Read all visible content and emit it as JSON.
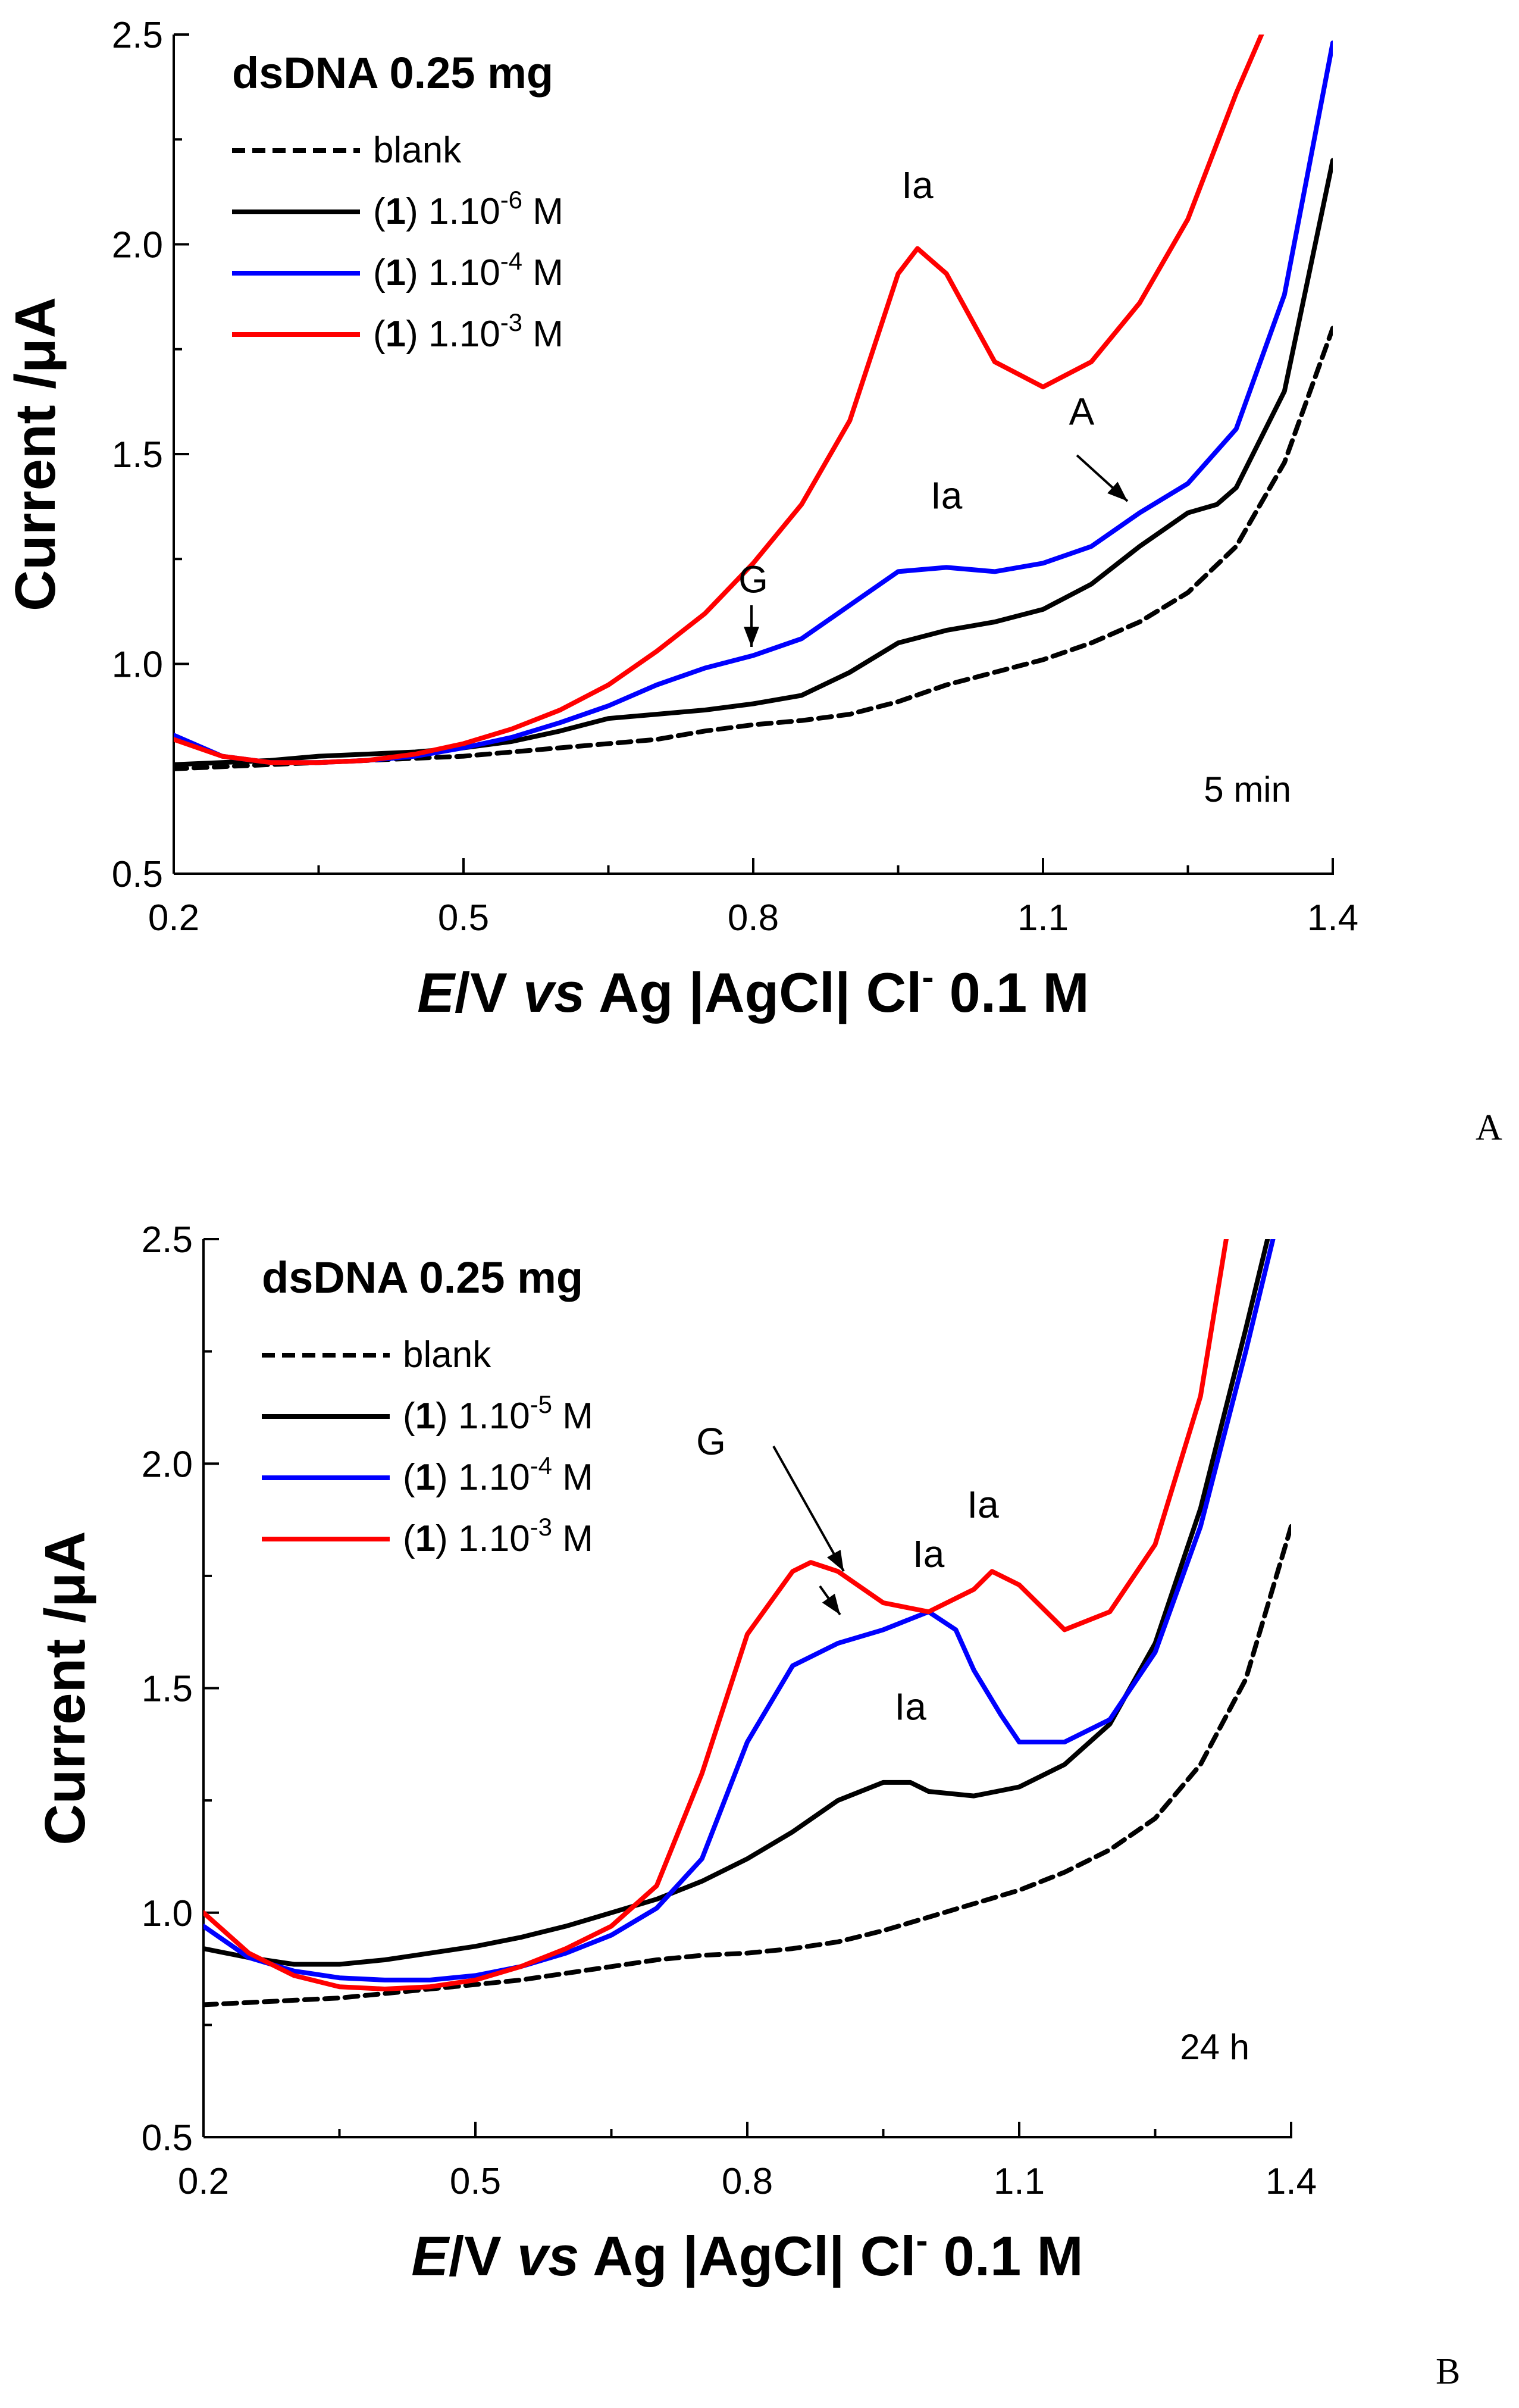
{
  "chart_data": [
    {
      "type": "line",
      "panel_letter": "A",
      "header": "dsDNA   0.25 mg",
      "xlabel": {
        "italic_var": "E",
        "rest_a": "/V ",
        "italic_vs": "vs",
        "rest_b": " Ag |AgCl| Cl",
        "sup": "-",
        "rest_c": " 0.1 M"
      },
      "ylabel": "Current /μA",
      "xlim": [
        0.2,
        1.4
      ],
      "ylim": [
        0.5,
        2.5
      ],
      "xticks": [
        "0.2",
        "0.5",
        "0.8",
        "1.1",
        "1.4"
      ],
      "yticks": [
        "0.5",
        "1.0",
        "1.5",
        "2.0",
        "2.5"
      ],
      "condition_label": "5 min",
      "grid": false,
      "legend_position": "top-left",
      "series": [
        {
          "name": "blank",
          "color": "#000000",
          "dash": "dashed",
          "x": [
            0.2,
            0.25,
            0.3,
            0.35,
            0.4,
            0.45,
            0.5,
            0.55,
            0.6,
            0.65,
            0.7,
            0.75,
            0.8,
            0.85,
            0.9,
            0.95,
            1.0,
            1.05,
            1.1,
            1.15,
            1.2,
            1.25,
            1.3,
            1.35,
            1.4
          ],
          "y": [
            0.75,
            0.755,
            0.76,
            0.765,
            0.77,
            0.775,
            0.78,
            0.79,
            0.8,
            0.81,
            0.82,
            0.84,
            0.855,
            0.865,
            0.88,
            0.91,
            0.95,
            0.98,
            1.01,
            1.05,
            1.1,
            1.17,
            1.28,
            1.48,
            1.8
          ]
        },
        {
          "label_prefix": "(",
          "label_bold": "1",
          "label_mid": ") 1.10",
          "label_sup": "-6",
          "label_suffix": " M",
          "color": "#000000",
          "dash": "solid",
          "x": [
            0.2,
            0.25,
            0.3,
            0.35,
            0.4,
            0.45,
            0.5,
            0.55,
            0.6,
            0.65,
            0.7,
            0.75,
            0.8,
            0.85,
            0.9,
            0.95,
            1.0,
            1.05,
            1.1,
            1.15,
            1.2,
            1.25,
            1.28,
            1.3,
            1.35,
            1.4
          ],
          "y": [
            0.76,
            0.765,
            0.77,
            0.78,
            0.785,
            0.79,
            0.8,
            0.815,
            0.84,
            0.87,
            0.88,
            0.89,
            0.905,
            0.925,
            0.98,
            1.05,
            1.08,
            1.1,
            1.13,
            1.19,
            1.28,
            1.36,
            1.38,
            1.42,
            1.65,
            2.2
          ]
        },
        {
          "label_prefix": "(",
          "label_bold": "1",
          "label_mid": ") 1.10",
          "label_sup": "-4",
          "label_suffix": " M",
          "color": "#0000ff",
          "dash": "solid",
          "x": [
            0.2,
            0.25,
            0.3,
            0.35,
            0.4,
            0.45,
            0.5,
            0.55,
            0.6,
            0.65,
            0.7,
            0.75,
            0.8,
            0.85,
            0.9,
            0.95,
            1.0,
            1.05,
            1.1,
            1.15,
            1.2,
            1.25,
            1.3,
            1.35,
            1.4
          ],
          "y": [
            0.83,
            0.78,
            0.765,
            0.765,
            0.77,
            0.78,
            0.8,
            0.825,
            0.86,
            0.9,
            0.95,
            0.99,
            1.02,
            1.06,
            1.14,
            1.22,
            1.23,
            1.22,
            1.24,
            1.28,
            1.36,
            1.43,
            1.56,
            1.88,
            2.48
          ]
        },
        {
          "label_prefix": "(",
          "label_bold": "1",
          "label_mid": ") 1.10",
          "label_sup": "-3",
          "label_suffix": " M",
          "color": "#ff0000",
          "dash": "solid",
          "x": [
            0.2,
            0.25,
            0.3,
            0.35,
            0.4,
            0.45,
            0.5,
            0.55,
            0.6,
            0.65,
            0.7,
            0.75,
            0.8,
            0.85,
            0.9,
            0.95,
            0.97,
            1.0,
            1.05,
            1.1,
            1.15,
            1.2,
            1.25,
            1.3,
            1.33
          ],
          "y": [
            0.82,
            0.78,
            0.765,
            0.765,
            0.77,
            0.785,
            0.81,
            0.845,
            0.89,
            0.95,
            1.03,
            1.12,
            1.24,
            1.38,
            1.58,
            1.93,
            1.99,
            1.93,
            1.72,
            1.66,
            1.72,
            1.86,
            2.06,
            2.36,
            2.52
          ]
        }
      ],
      "annotations": [
        {
          "text": "Ia",
          "x": 0.97,
          "y": 2.11
        },
        {
          "text": "Ia",
          "x": 1.0,
          "y": 1.37
        },
        {
          "text": "G",
          "x": 0.8,
          "y": 1.17
        },
        {
          "text": "A",
          "x": 1.14,
          "y": 1.57
        }
      ]
    },
    {
      "type": "line",
      "panel_letter": "B",
      "header": "dsDNA   0.25 mg",
      "xlabel": {
        "italic_var": "E",
        "rest_a": "/V ",
        "italic_vs": "vs",
        "rest_b": " Ag |AgCl| Cl",
        "sup": "-",
        "rest_c": " 0.1 M"
      },
      "ylabel": "Current /μA",
      "xlim": [
        0.2,
        1.4
      ],
      "ylim": [
        0.5,
        2.5
      ],
      "xticks": [
        "0.2",
        "0.5",
        "0.8",
        "1.1",
        "1.4"
      ],
      "yticks": [
        "0.5",
        "1.0",
        "1.5",
        "2.0",
        "2.5"
      ],
      "condition_label": "24 h",
      "grid": false,
      "legend_position": "top-left",
      "series": [
        {
          "name": "blank",
          "color": "#000000",
          "dash": "dashed",
          "x": [
            0.2,
            0.25,
            0.3,
            0.35,
            0.4,
            0.45,
            0.5,
            0.55,
            0.6,
            0.65,
            0.7,
            0.75,
            0.8,
            0.85,
            0.9,
            0.95,
            1.0,
            1.05,
            1.1,
            1.15,
            1.2,
            1.25,
            1.3,
            1.35,
            1.4
          ],
          "y": [
            0.795,
            0.8,
            0.805,
            0.81,
            0.82,
            0.83,
            0.84,
            0.85,
            0.865,
            0.88,
            0.895,
            0.905,
            0.91,
            0.92,
            0.935,
            0.96,
            0.99,
            1.02,
            1.05,
            1.09,
            1.14,
            1.21,
            1.33,
            1.52,
            1.86
          ]
        },
        {
          "label_prefix": "(",
          "label_bold": "1",
          "label_mid": ") 1.10",
          "label_sup": "-5",
          "label_suffix": " M",
          "color": "#000000",
          "dash": "solid",
          "x": [
            0.2,
            0.25,
            0.3,
            0.35,
            0.4,
            0.45,
            0.5,
            0.55,
            0.6,
            0.65,
            0.7,
            0.75,
            0.8,
            0.85,
            0.9,
            0.95,
            0.98,
            1.0,
            1.05,
            1.1,
            1.15,
            1.2,
            1.25,
            1.3,
            1.35,
            1.38
          ],
          "y": [
            0.92,
            0.9,
            0.885,
            0.885,
            0.895,
            0.91,
            0.925,
            0.945,
            0.97,
            1.0,
            1.03,
            1.07,
            1.12,
            1.18,
            1.25,
            1.29,
            1.29,
            1.27,
            1.26,
            1.28,
            1.33,
            1.42,
            1.6,
            1.9,
            2.3,
            2.55
          ]
        },
        {
          "label_prefix": "(",
          "label_bold": "1",
          "label_mid": ") 1.10",
          "label_sup": "-4",
          "label_suffix": " M",
          "color": "#0000ff",
          "dash": "solid",
          "x": [
            0.2,
            0.25,
            0.3,
            0.35,
            0.4,
            0.45,
            0.5,
            0.55,
            0.6,
            0.65,
            0.7,
            0.75,
            0.8,
            0.85,
            0.9,
            0.95,
            1.0,
            1.03,
            1.05,
            1.08,
            1.1,
            1.15,
            1.2,
            1.25,
            1.3,
            1.35,
            1.38
          ],
          "y": [
            0.97,
            0.9,
            0.87,
            0.855,
            0.85,
            0.85,
            0.86,
            0.88,
            0.91,
            0.95,
            1.01,
            1.12,
            1.38,
            1.55,
            1.6,
            1.63,
            1.67,
            1.63,
            1.54,
            1.44,
            1.38,
            1.38,
            1.43,
            1.58,
            1.86,
            2.25,
            2.5
          ]
        },
        {
          "label_prefix": "(",
          "label_bold": "1",
          "label_mid": ") 1.10",
          "label_sup": "-3",
          "label_suffix": " M",
          "color": "#ff0000",
          "dash": "solid",
          "x": [
            0.2,
            0.25,
            0.3,
            0.35,
            0.4,
            0.45,
            0.5,
            0.55,
            0.6,
            0.65,
            0.7,
            0.75,
            0.8,
            0.85,
            0.87,
            0.9,
            0.95,
            1.0,
            1.05,
            1.07,
            1.1,
            1.15,
            1.2,
            1.25,
            1.3,
            1.33
          ],
          "y": [
            1.0,
            0.91,
            0.86,
            0.835,
            0.83,
            0.835,
            0.85,
            0.88,
            0.92,
            0.97,
            1.06,
            1.31,
            1.62,
            1.76,
            1.78,
            1.76,
            1.69,
            1.67,
            1.72,
            1.76,
            1.73,
            1.63,
            1.67,
            1.82,
            2.15,
            2.52
          ]
        }
      ],
      "annotations": [
        {
          "text": "G",
          "x": 0.76,
          "y": 2.02
        },
        {
          "text": "Ia",
          "x": 0.98,
          "y": 1.43
        },
        {
          "text": "Ia",
          "x": 1.0,
          "y": 1.77
        },
        {
          "text": "Ia",
          "x": 1.06,
          "y": 1.88
        }
      ]
    }
  ]
}
